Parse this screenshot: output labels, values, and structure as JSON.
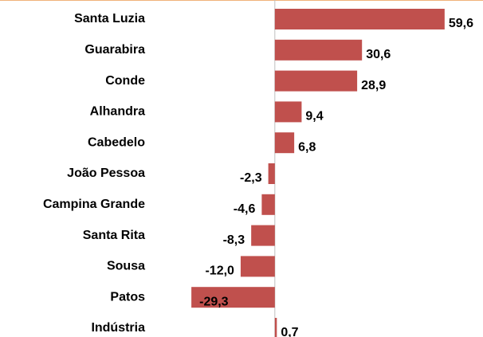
{
  "chart_data": {
    "type": "barh",
    "categories": [
      "Santa Luzia",
      "Guarabira",
      "Conde",
      "Alhandra",
      "Cabedelo",
      "João Pessoa",
      "Campina Grande",
      "Santa Rita",
      "Sousa",
      "Patos",
      "Indústria"
    ],
    "values": [
      59.6,
      30.6,
      28.9,
      9.4,
      6.8,
      -2.3,
      -4.6,
      -8.3,
      -12.0,
      -29.3,
      0.7
    ],
    "value_labels": [
      "59,6",
      "30,6",
      "28,9",
      "9,4",
      "6,8",
      "-2,3",
      "-4,6",
      "-8,3",
      "-12,0",
      "-29,3",
      "0,7"
    ],
    "color": "#c0504d",
    "xlim": [
      -45,
      70
    ]
  }
}
